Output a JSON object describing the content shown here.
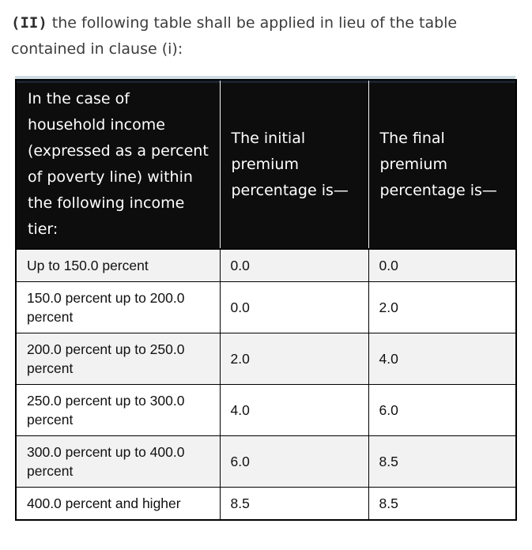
{
  "intro": {
    "designator": "(II)",
    "text": " the following table shall be applied in lieu of the table contained in clause (i):"
  },
  "table": {
    "headers": [
      "In the case of household income (expressed as a percent of poverty line) within the following income tier:",
      "The initial premium percentage is—",
      "The final premium percentage is—"
    ],
    "rows": [
      {
        "tier": "Up to 150.0 percent",
        "initial": "0.0",
        "final": "0.0"
      },
      {
        "tier": "150.0 percent up to 200.0 percent",
        "initial": "0.0",
        "final": "2.0"
      },
      {
        "tier": "200.0 percent up to 250.0 percent",
        "initial": "2.0",
        "final": "4.0"
      },
      {
        "tier": "250.0 percent up to 300.0 percent",
        "initial": "4.0",
        "final": "6.0"
      },
      {
        "tier": "300.0 percent up to 400.0 percent",
        "initial": "6.0",
        "final": "8.5"
      },
      {
        "tier": "400.0 percent and higher",
        "initial": "8.5",
        "final": "8.5"
      }
    ],
    "colors": {
      "header_bg": "#0d0d0d",
      "header_text": "#ffffff",
      "row_alt_bg": "#f2f2f2",
      "row_bg": "#ffffff",
      "border": "#000000",
      "top_strip": "#cfdde3",
      "top_strip_edge": "#1a2430"
    }
  }
}
